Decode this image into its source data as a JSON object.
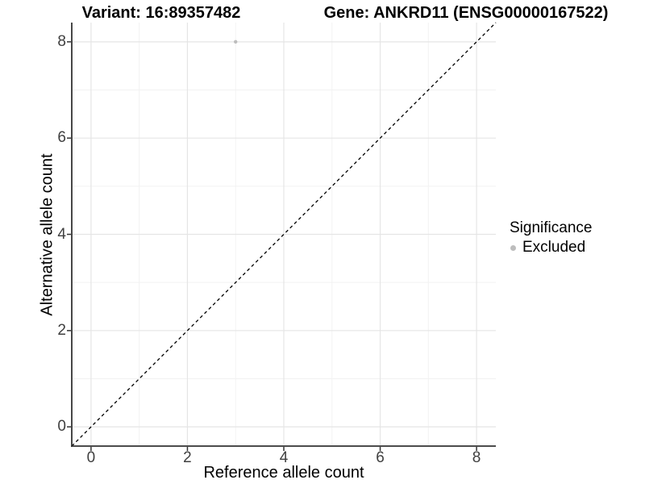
{
  "chart_data": {
    "type": "scatter",
    "title_left": "Variant: 16:89357482",
    "title_right": "Gene: ANKRD11 (ENSG00000167522)",
    "xlabel": "Reference allele count",
    "ylabel": "Alternative allele count",
    "x_ticks": [
      0,
      2,
      4,
      6,
      8
    ],
    "y_ticks": [
      0,
      2,
      4,
      6,
      8
    ],
    "x_minor_ticks": [
      1,
      3,
      5,
      7
    ],
    "y_minor_ticks": [
      1,
      3,
      5,
      7
    ],
    "xlim": [
      -0.4,
      8.4
    ],
    "ylim": [
      -0.4,
      8.4
    ],
    "grid": true,
    "points": [
      {
        "x": 3,
        "y": 8,
        "series": "Excluded",
        "color": "#bdbdbd"
      }
    ],
    "reference_line": {
      "slope": 1,
      "intercept": 0,
      "line_style": "dashed",
      "color": "#000000"
    },
    "colors": {
      "grid_major": "#e5e5e5",
      "grid_minor": "#f2f2f2",
      "axis_line": "#333333",
      "tick_text": "#404040",
      "point_excluded": "#bdbdbd"
    },
    "legend_position": "right"
  },
  "legend": {
    "title": "Significance",
    "items": [
      {
        "label": "Excluded",
        "color": "#bdbdbd"
      }
    ]
  }
}
